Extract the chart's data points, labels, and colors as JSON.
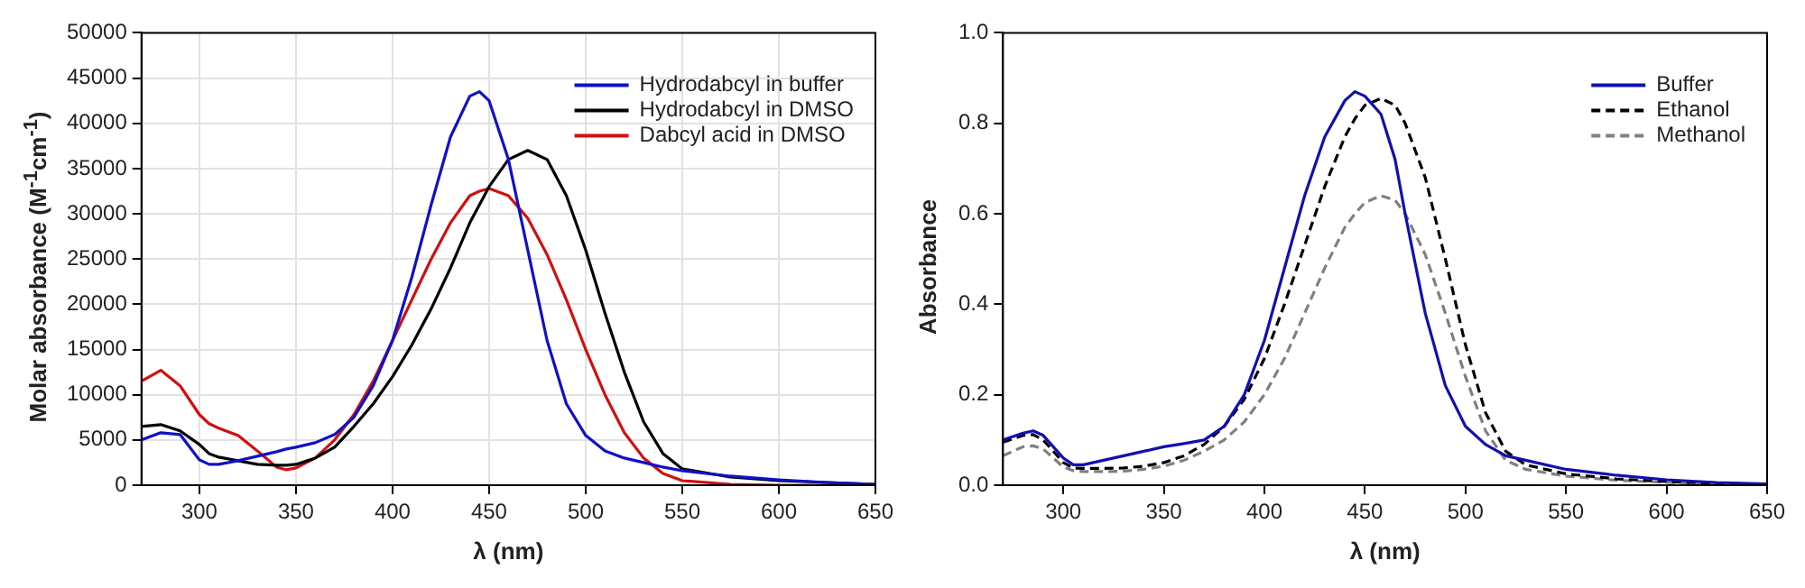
{
  "chart_data": [
    {
      "type": "line",
      "xlabel": "λ (nm)",
      "ylabel": "Molar absorbance (M$^{-1}$cm$^{-1}$)",
      "xlim": [
        270,
        650
      ],
      "xticks": [
        300,
        350,
        400,
        450,
        500,
        550,
        600,
        650
      ],
      "ylim": [
        0,
        50000
      ],
      "yticks": [
        0,
        5000,
        10000,
        15000,
        20000,
        25000,
        30000,
        35000,
        40000,
        45000,
        50000
      ],
      "grid": true,
      "legend": "top right",
      "marker": "none",
      "x": [
        270,
        280,
        290,
        300,
        305,
        310,
        320,
        330,
        340,
        345,
        350,
        360,
        370,
        380,
        390,
        400,
        410,
        420,
        430,
        440,
        445,
        450,
        460,
        470,
        480,
        490,
        500,
        510,
        520,
        530,
        540,
        550,
        575,
        600,
        625,
        650
      ],
      "series": [
        {
          "name": "Hydrodabcyl in buffer",
          "color": "#1010c8",
          "values": [
            5000,
            5800,
            5600,
            2800,
            2300,
            2300,
            2700,
            3200,
            3700,
            4000,
            4200,
            4700,
            5600,
            7500,
            11000,
            16000,
            23000,
            31000,
            38500,
            43000,
            43500,
            42500,
            36000,
            26000,
            16000,
            9000,
            5500,
            3800,
            3000,
            2500,
            2000,
            1600,
            1000,
            600,
            300,
            100
          ]
        },
        {
          "name": "Hydrodabcyl in DMSO",
          "color": "#000000",
          "values": [
            6500,
            6700,
            6000,
            4500,
            3500,
            3100,
            2700,
            2300,
            2200,
            2200,
            2300,
            3000,
            4200,
            6500,
            9000,
            12000,
            15500,
            19500,
            24000,
            29000,
            31000,
            33000,
            36000,
            37000,
            36000,
            32000,
            26000,
            19000,
            12500,
            7000,
            3500,
            1800,
            900,
            500,
            300,
            100
          ]
        },
        {
          "name": "Dabcyl acid in DMSO",
          "color": "#d01010",
          "values": [
            11500,
            12700,
            11000,
            7800,
            6800,
            6300,
            5500,
            3800,
            2000,
            1700,
            1900,
            3000,
            5000,
            7800,
            11500,
            16000,
            20500,
            25000,
            29000,
            32000,
            32500,
            32800,
            32000,
            29500,
            25500,
            20500,
            15000,
            10000,
            5800,
            3000,
            1300,
            500,
            100,
            0,
            0,
            0
          ]
        }
      ]
    },
    {
      "type": "line",
      "xlabel": "λ (nm)",
      "ylabel": "Absorbance",
      "xlim": [
        270,
        650
      ],
      "xticks": [
        300,
        350,
        400,
        450,
        500,
        550,
        600,
        650
      ],
      "ylim": [
        0,
        1
      ],
      "yticks": [
        {
          "value": 0,
          "label": "0.0"
        },
        {
          "value": 0.2,
          "label": "0.2"
        },
        {
          "value": 0.4,
          "label": "0.4"
        },
        {
          "value": 0.6,
          "label": "0.6"
        },
        {
          "value": 0.8,
          "label": "0.8"
        },
        {
          "value": 1,
          "label": "1.0"
        }
      ],
      "legend": "top right",
      "marker": "none",
      "x": [
        270,
        280,
        285,
        290,
        300,
        305,
        310,
        320,
        330,
        340,
        350,
        360,
        370,
        380,
        390,
        400,
        410,
        420,
        430,
        440,
        445,
        450,
        458,
        465,
        470,
        480,
        490,
        500,
        510,
        520,
        530,
        550,
        575,
        600,
        625,
        650
      ],
      "series": [
        {
          "name": "Buffer",
          "color": "#1010b0",
          "line_style": "solid",
          "values": [
            0.1,
            0.115,
            0.12,
            0.11,
            0.06,
            0.045,
            0.045,
            0.055,
            0.065,
            0.075,
            0.085,
            0.092,
            0.1,
            0.13,
            0.2,
            0.32,
            0.48,
            0.64,
            0.77,
            0.85,
            0.87,
            0.86,
            0.82,
            0.72,
            0.6,
            0.38,
            0.22,
            0.13,
            0.09,
            0.065,
            0.055,
            0.035,
            0.022,
            0.012,
            0.006,
            0.003
          ]
        },
        {
          "name": "Ethanol",
          "color": "#000000",
          "line_style": "dashed",
          "values": [
            0.095,
            0.11,
            0.112,
            0.1,
            0.05,
            0.038,
            0.037,
            0.037,
            0.038,
            0.042,
            0.05,
            0.065,
            0.09,
            0.13,
            0.19,
            0.28,
            0.4,
            0.53,
            0.66,
            0.77,
            0.81,
            0.84,
            0.855,
            0.84,
            0.8,
            0.68,
            0.5,
            0.31,
            0.16,
            0.075,
            0.045,
            0.025,
            0.014,
            0.008,
            0.004,
            0.002
          ]
        },
        {
          "name": "Methanol",
          "color": "#808080",
          "line_style": "dashed",
          "values": [
            0.065,
            0.085,
            0.087,
            0.08,
            0.04,
            0.032,
            0.03,
            0.03,
            0.031,
            0.035,
            0.042,
            0.055,
            0.075,
            0.1,
            0.14,
            0.2,
            0.28,
            0.38,
            0.48,
            0.57,
            0.6,
            0.625,
            0.64,
            0.63,
            0.6,
            0.51,
            0.38,
            0.24,
            0.12,
            0.055,
            0.035,
            0.02,
            0.011,
            0.006,
            0.003,
            null
          ]
        }
      ]
    }
  ]
}
